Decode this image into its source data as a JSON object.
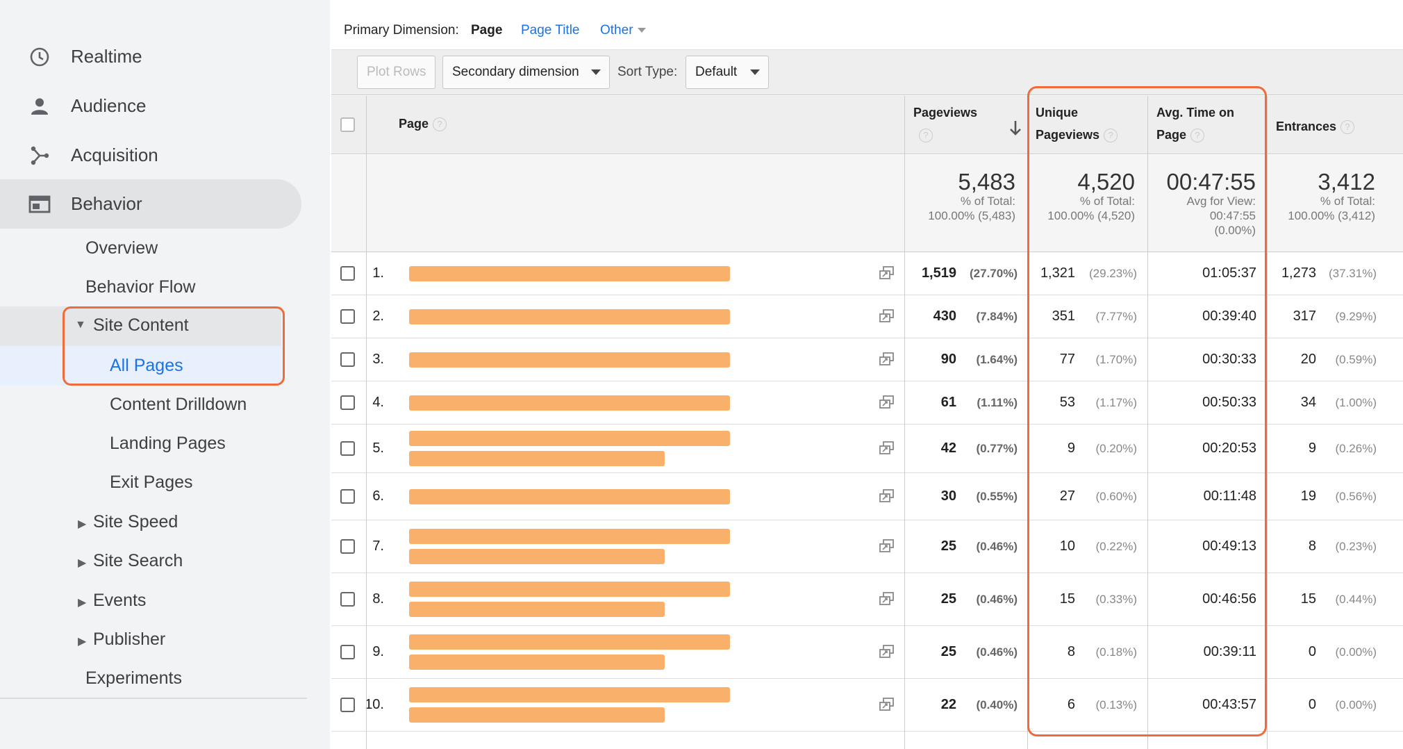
{
  "sidebar": {
    "nav": [
      {
        "label": "Realtime",
        "icon": "clock-icon"
      },
      {
        "label": "Audience",
        "icon": "person-icon"
      },
      {
        "label": "Acquisition",
        "icon": "acquisition-icon"
      },
      {
        "label": "Behavior",
        "icon": "behavior-icon"
      }
    ],
    "behavior_items": {
      "overview": "Overview",
      "behavior_flow": "Behavior Flow",
      "site_content": "Site Content",
      "all_pages": "All Pages",
      "content_drilldown": "Content Drilldown",
      "landing_pages": "Landing Pages",
      "exit_pages": "Exit Pages",
      "site_speed": "Site Speed",
      "site_search": "Site Search",
      "events": "Events",
      "publisher": "Publisher",
      "experiments": "Experiments"
    }
  },
  "dimension_bar": {
    "label": "Primary Dimension:",
    "active": "Page",
    "page_title": "Page Title",
    "other": "Other"
  },
  "toolbar": {
    "plot_rows": "Plot Rows",
    "secondary_dimension": "Secondary dimension",
    "sort_type_label": "Sort Type:",
    "sort_type_value": "Default"
  },
  "table": {
    "headers": {
      "page": "Page",
      "pageviews": "Pageviews",
      "unique_pageviews_1": "Unique",
      "unique_pageviews_2": "Pageviews",
      "avg_time_1": "Avg. Time on",
      "avg_time_2": "Page",
      "entrances": "Entrances"
    },
    "totals": {
      "pageviews": {
        "value": "5,483",
        "line1": "% of Total:",
        "line2": "100.00% (5,483)"
      },
      "unique_pageviews": {
        "value": "4,520",
        "line1": "% of Total:",
        "line2": "100.00% (4,520)"
      },
      "avg_time": {
        "value": "00:47:55",
        "line1": "Avg for View:",
        "line2": "00:47:55",
        "line3": "(0.00%)"
      },
      "entrances": {
        "value": "3,412",
        "line1": "% of Total:",
        "line2": "100.00% (3,412)"
      }
    },
    "rows": [
      {
        "num": "1.",
        "pageviews": "1,519",
        "pageviews_pct": "(27.70%)",
        "unique": "1,321",
        "unique_pct": "(29.23%)",
        "avg_time": "01:05:37",
        "entrances": "1,273",
        "entrances_pct": "(37.31%)"
      },
      {
        "num": "2.",
        "pageviews": "430",
        "pageviews_pct": "(7.84%)",
        "unique": "351",
        "unique_pct": "(7.77%)",
        "avg_time": "00:39:40",
        "entrances": "317",
        "entrances_pct": "(9.29%)"
      },
      {
        "num": "3.",
        "pageviews": "90",
        "pageviews_pct": "(1.64%)",
        "unique": "77",
        "unique_pct": "(1.70%)",
        "avg_time": "00:30:33",
        "entrances": "20",
        "entrances_pct": "(0.59%)"
      },
      {
        "num": "4.",
        "pageviews": "61",
        "pageviews_pct": "(1.11%)",
        "unique": "53",
        "unique_pct": "(1.17%)",
        "avg_time": "00:50:33",
        "entrances": "34",
        "entrances_pct": "(1.00%)"
      },
      {
        "num": "5.",
        "pageviews": "42",
        "pageviews_pct": "(0.77%)",
        "unique": "9",
        "unique_pct": "(0.20%)",
        "avg_time": "00:20:53",
        "entrances": "9",
        "entrances_pct": "(0.26%)"
      },
      {
        "num": "6.",
        "pageviews": "30",
        "pageviews_pct": "(0.55%)",
        "unique": "27",
        "unique_pct": "(0.60%)",
        "avg_time": "00:11:48",
        "entrances": "19",
        "entrances_pct": "(0.56%)"
      },
      {
        "num": "7.",
        "pageviews": "25",
        "pageviews_pct": "(0.46%)",
        "unique": "10",
        "unique_pct": "(0.22%)",
        "avg_time": "00:49:13",
        "entrances": "8",
        "entrances_pct": "(0.23%)"
      },
      {
        "num": "8.",
        "pageviews": "25",
        "pageviews_pct": "(0.46%)",
        "unique": "15",
        "unique_pct": "(0.33%)",
        "avg_time": "00:46:56",
        "entrances": "15",
        "entrances_pct": "(0.44%)"
      },
      {
        "num": "9.",
        "pageviews": "25",
        "pageviews_pct": "(0.46%)",
        "unique": "8",
        "unique_pct": "(0.18%)",
        "avg_time": "00:39:11",
        "entrances": "0",
        "entrances_pct": "(0.00%)"
      },
      {
        "num": "10.",
        "pageviews": "22",
        "pageviews_pct": "(0.40%)",
        "unique": "6",
        "unique_pct": "(0.13%)",
        "avg_time": "00:43:57",
        "entrances": "0",
        "entrances_pct": "(0.00%)"
      }
    ]
  },
  "colors": {
    "highlight_border": "#ef6c3a",
    "redacted_bar": "#f9b06b",
    "link_blue": "#1a73e8"
  }
}
